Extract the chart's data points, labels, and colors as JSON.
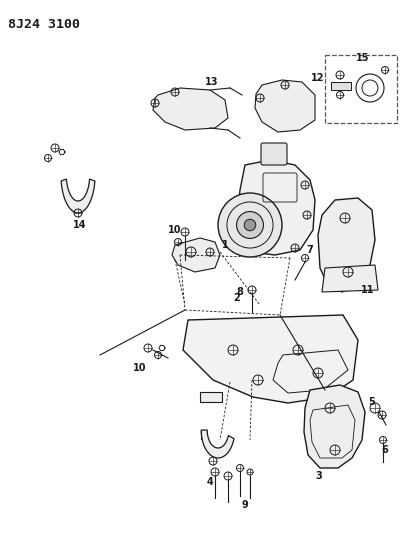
{
  "title": "8J24 3100",
  "bg_color": "#ffffff",
  "line_color": "#1a1a1a",
  "gray_color": "#888888",
  "title_fontsize": 9.5,
  "label_fontsize": 7,
  "figsize": [
    4.05,
    5.33
  ],
  "dpi": 100
}
